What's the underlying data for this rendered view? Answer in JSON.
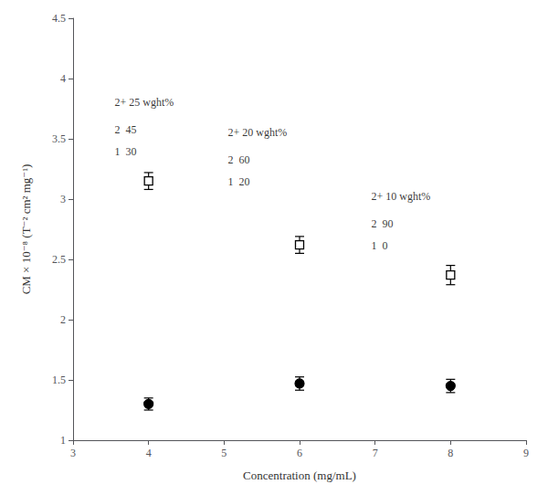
{
  "chart_data": {
    "type": "scatter",
    "xlabel": "Concentration (mg/mL)",
    "ylabel": "CM × 10⁻⁸ (T⁻² cm² mg⁻¹)",
    "xlim": [
      3,
      9
    ],
    "ylim": [
      1,
      4.5
    ],
    "xticks": [
      3,
      4,
      5,
      6,
      7,
      8,
      9
    ],
    "yticks": [
      1,
      1.5,
      2,
      2.5,
      3,
      3.5,
      4,
      4.5
    ],
    "grid": false,
    "series": [
      {
        "marker": "open square",
        "color": "#000000",
        "x": [
          4,
          6,
          8
        ],
        "values": [
          3.15,
          2.62,
          2.37
        ],
        "yerr": [
          0.07,
          0.07,
          0.08
        ]
      },
      {
        "marker": "circle",
        "color": "#000000",
        "x": [
          4,
          6,
          8
        ],
        "values": [
          1.3,
          1.47,
          1.45
        ],
        "yerr": [
          0.05,
          0.055,
          0.055
        ]
      }
    ],
    "annotations": [
      {
        "x": 3.55,
        "y": 3.85,
        "text": "2+ 25 wght%"
      },
      {
        "x": 3.55,
        "y": 3.62,
        "text": "2  45"
      },
      {
        "x": 3.55,
        "y": 3.44,
        "text": "1  30"
      },
      {
        "x": 5.05,
        "y": 3.6,
        "text": "2+ 20 wght%"
      },
      {
        "x": 5.05,
        "y": 3.37,
        "text": "2  60"
      },
      {
        "x": 5.05,
        "y": 3.19,
        "text": "1  20"
      },
      {
        "x": 6.95,
        "y": 3.07,
        "text": "2+ 10 wght%"
      },
      {
        "x": 6.95,
        "y": 2.84,
        "text": "2  90"
      },
      {
        "x": 6.95,
        "y": 2.66,
        "text": "1  0"
      }
    ]
  }
}
